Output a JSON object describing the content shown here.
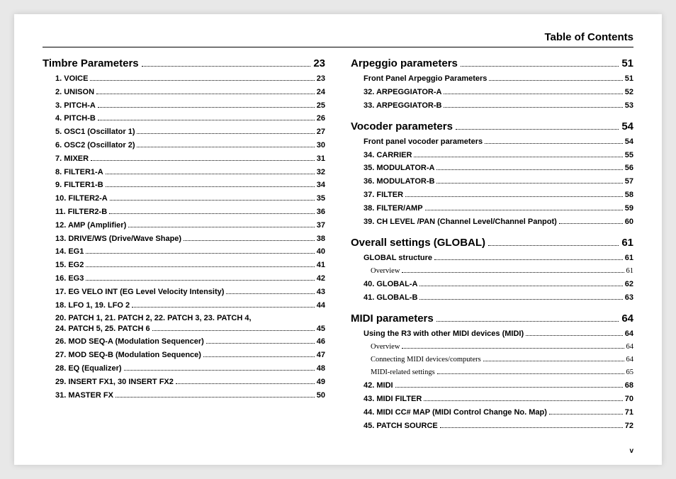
{
  "header": "Table of Contents",
  "footer": "v",
  "leftColumn": [
    {
      "title": "Timbre Parameters",
      "page": "23",
      "spaced": false,
      "entries": [
        {
          "label": "1. VOICE",
          "page": "23"
        },
        {
          "label": "2. UNISON",
          "page": "24"
        },
        {
          "label": "3. PITCH-A",
          "page": "25"
        },
        {
          "label": "4. PITCH-B",
          "page": "26"
        },
        {
          "label": "5. OSC1 (Oscillator 1)",
          "page": "27"
        },
        {
          "label": "6. OSC2 (Oscillator 2)",
          "page": "30"
        },
        {
          "label": "7. MIXER",
          "page": "31"
        },
        {
          "label": "8. FILTER1-A",
          "page": "32"
        },
        {
          "label": "9. FILTER1-B",
          "page": "34"
        },
        {
          "label": "10. FILTER2-A",
          "page": "35"
        },
        {
          "label": "11. FILTER2-B",
          "page": "36"
        },
        {
          "label": "12. AMP (Amplifier)",
          "page": "37"
        },
        {
          "label": "13. DRIVE/WS (Drive/Wave Shape)",
          "page": "38"
        },
        {
          "label": "14. EG1",
          "page": "40"
        },
        {
          "label": "15. EG2",
          "page": "41"
        },
        {
          "label": "16. EG3",
          "page": "42"
        },
        {
          "label": "17. EG VELO INT (EG Level Velocity Intensity)",
          "page": "43"
        },
        {
          "label": "18. LFO 1, 19. LFO 2",
          "page": "44"
        },
        {
          "multiline": true,
          "line1": "20. PATCH 1, 21. PATCH 2, 22. PATCH 3, 23. PATCH 4,",
          "line2": "24. PATCH 5, 25. PATCH 6",
          "page": "45"
        },
        {
          "label": "26. MOD SEQ-A (Modulation Sequencer)",
          "page": "46"
        },
        {
          "label": "27. MOD SEQ-B (Modulation Sequence)",
          "page": "47"
        },
        {
          "label": "28. EQ (Equalizer)",
          "page": "48"
        },
        {
          "label": "29. INSERT FX1, 30 INSERT FX2",
          "page": "49"
        },
        {
          "label": "31. MASTER FX",
          "page": "50"
        }
      ]
    }
  ],
  "rightColumn": [
    {
      "title": "Arpeggio parameters",
      "page": "51",
      "spaced": false,
      "entries": [
        {
          "label": "Front Panel Arpeggio Parameters",
          "page": "51"
        },
        {
          "label": "32. ARPEGGIATOR-A",
          "page": "52"
        },
        {
          "label": "33. ARPEGGIATOR-B",
          "page": "53"
        }
      ]
    },
    {
      "title": "Vocoder parameters",
      "page": "54",
      "spaced": true,
      "entries": [
        {
          "label": "Front panel vocoder parameters",
          "page": "54"
        },
        {
          "label": "34. CARRIER",
          "page": "55"
        },
        {
          "label": "35. MODULATOR-A",
          "page": "56"
        },
        {
          "label": "36. MODULATOR-B",
          "page": "57"
        },
        {
          "label": "37. FILTER",
          "page": "58"
        },
        {
          "label": "38. FILTER/AMP",
          "page": "59"
        },
        {
          "label": "39. CH LEVEL /PAN (Channel Level/Channel Panpot)",
          "page": "60"
        }
      ]
    },
    {
      "title": "Overall settings (GLOBAL)",
      "page": "61",
      "spaced": true,
      "entries": [
        {
          "label": "GLOBAL structure",
          "page": "61"
        },
        {
          "label": "Overview",
          "page": "61",
          "sub": true
        },
        {
          "label": "40. GLOBAL-A",
          "page": "62"
        },
        {
          "label": "41. GLOBAL-B",
          "page": "63"
        }
      ]
    },
    {
      "title": "MIDI parameters",
      "page": "64",
      "spaced": true,
      "entries": [
        {
          "label": "Using the R3 with other MIDI devices (MIDI)",
          "page": "64"
        },
        {
          "label": "Overview",
          "page": "64",
          "sub": true
        },
        {
          "label": "Connecting MIDI devices/computers",
          "page": "64",
          "sub": true
        },
        {
          "label": "MIDI-related settings",
          "page": "65",
          "sub": true
        },
        {
          "label": "42. MIDI",
          "page": "68"
        },
        {
          "label": "43. MIDI FILTER",
          "page": "70"
        },
        {
          "label": "44. MIDI CC# MAP (MIDI Control Change No. Map)",
          "page": "71"
        },
        {
          "label": "45. PATCH SOURCE",
          "page": "72"
        }
      ]
    }
  ]
}
